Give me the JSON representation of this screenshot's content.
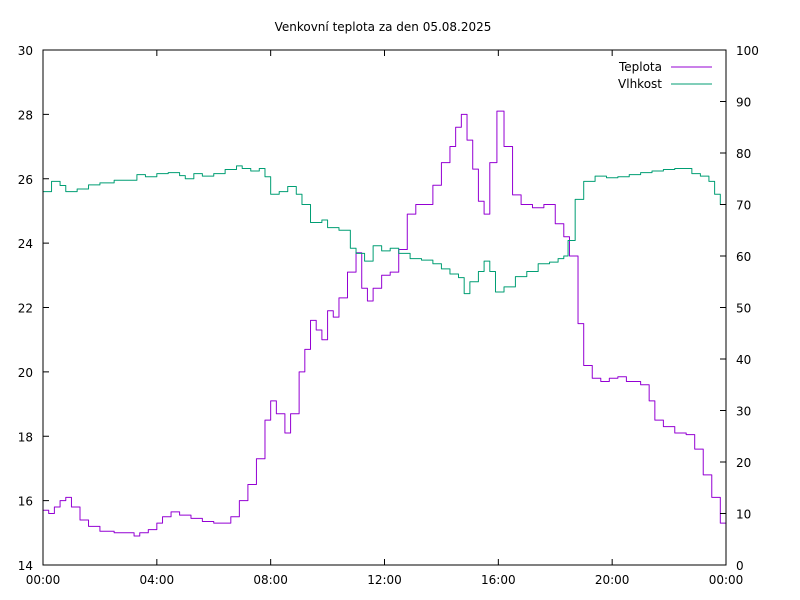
{
  "chart_data": {
    "type": "line",
    "title": "Venkovní teplota za den 05.08.2025",
    "x_unit": "hours",
    "xlim": [
      0,
      24
    ],
    "x_ticks": [
      {
        "value": 0,
        "label": "00:00"
      },
      {
        "value": 4,
        "label": "04:00"
      },
      {
        "value": 8,
        "label": "08:00"
      },
      {
        "value": 12,
        "label": "12:00"
      },
      {
        "value": 16,
        "label": "16:00"
      },
      {
        "value": 20,
        "label": "20:00"
      },
      {
        "value": 24,
        "label": "00:00"
      }
    ],
    "ylim": [
      14,
      30
    ],
    "y_ticks": [
      14,
      16,
      18,
      20,
      22,
      24,
      26,
      28,
      30
    ],
    "y2lim": [
      0,
      100
    ],
    "y2_ticks": [
      0,
      10,
      20,
      30,
      40,
      50,
      60,
      70,
      80,
      90,
      100
    ],
    "grid": false,
    "legend_position": "top-right",
    "series": [
      {
        "name": "Teplota",
        "axis": "left",
        "color": "#9400d3",
        "points": [
          [
            0.0,
            15.7
          ],
          [
            0.2,
            15.6
          ],
          [
            0.4,
            15.8
          ],
          [
            0.6,
            16.0
          ],
          [
            0.8,
            16.1
          ],
          [
            1.0,
            15.8
          ],
          [
            1.3,
            15.4
          ],
          [
            1.6,
            15.2
          ],
          [
            2.0,
            15.05
          ],
          [
            2.5,
            15.0
          ],
          [
            3.0,
            15.0
          ],
          [
            3.2,
            14.9
          ],
          [
            3.4,
            15.0
          ],
          [
            3.7,
            15.1
          ],
          [
            4.0,
            15.3
          ],
          [
            4.2,
            15.5
          ],
          [
            4.5,
            15.65
          ],
          [
            4.8,
            15.55
          ],
          [
            5.2,
            15.45
          ],
          [
            5.6,
            15.35
          ],
          [
            6.0,
            15.3
          ],
          [
            6.3,
            15.3
          ],
          [
            6.6,
            15.5
          ],
          [
            6.9,
            16.0
          ],
          [
            7.2,
            16.5
          ],
          [
            7.5,
            17.3
          ],
          [
            7.8,
            18.5
          ],
          [
            8.0,
            19.1
          ],
          [
            8.2,
            18.7
          ],
          [
            8.5,
            18.1
          ],
          [
            8.7,
            18.7
          ],
          [
            9.0,
            20.0
          ],
          [
            9.2,
            20.7
          ],
          [
            9.4,
            21.6
          ],
          [
            9.6,
            21.3
          ],
          [
            9.8,
            21.0
          ],
          [
            10.0,
            21.9
          ],
          [
            10.2,
            21.7
          ],
          [
            10.4,
            22.3
          ],
          [
            10.7,
            23.1
          ],
          [
            11.0,
            23.7
          ],
          [
            11.2,
            22.6
          ],
          [
            11.4,
            22.2
          ],
          [
            11.6,
            22.6
          ],
          [
            11.9,
            23.0
          ],
          [
            12.2,
            23.1
          ],
          [
            12.5,
            23.8
          ],
          [
            12.8,
            24.9
          ],
          [
            13.1,
            25.2
          ],
          [
            13.4,
            25.2
          ],
          [
            13.7,
            25.8
          ],
          [
            14.0,
            26.5
          ],
          [
            14.3,
            27.0
          ],
          [
            14.5,
            27.6
          ],
          [
            14.7,
            28.0
          ],
          [
            14.9,
            27.2
          ],
          [
            15.1,
            26.3
          ],
          [
            15.3,
            25.3
          ],
          [
            15.5,
            24.9
          ],
          [
            15.7,
            26.5
          ],
          [
            15.95,
            28.1
          ],
          [
            16.2,
            27.0
          ],
          [
            16.5,
            25.5
          ],
          [
            16.8,
            25.2
          ],
          [
            17.2,
            25.1
          ],
          [
            17.6,
            25.2
          ],
          [
            18.0,
            24.6
          ],
          [
            18.3,
            24.2
          ],
          [
            18.5,
            23.6
          ],
          [
            18.8,
            21.5
          ],
          [
            19.0,
            20.2
          ],
          [
            19.3,
            19.8
          ],
          [
            19.6,
            19.7
          ],
          [
            19.9,
            19.8
          ],
          [
            20.2,
            19.85
          ],
          [
            20.5,
            19.7
          ],
          [
            21.0,
            19.6
          ],
          [
            21.3,
            19.1
          ],
          [
            21.5,
            18.5
          ],
          [
            21.8,
            18.3
          ],
          [
            22.2,
            18.1
          ],
          [
            22.6,
            18.05
          ],
          [
            22.9,
            17.6
          ],
          [
            23.2,
            16.8
          ],
          [
            23.5,
            16.1
          ],
          [
            23.8,
            15.3
          ],
          [
            24.0,
            15.1
          ]
        ]
      },
      {
        "name": "Vlhkost",
        "axis": "right",
        "color": "#009e73",
        "points": [
          [
            0.0,
            72.5
          ],
          [
            0.3,
            74.5
          ],
          [
            0.6,
            73.7
          ],
          [
            0.8,
            72.5
          ],
          [
            1.2,
            73.0
          ],
          [
            1.6,
            73.8
          ],
          [
            2.0,
            74.2
          ],
          [
            2.5,
            74.7
          ],
          [
            3.0,
            74.7
          ],
          [
            3.3,
            75.8
          ],
          [
            3.6,
            75.4
          ],
          [
            4.0,
            76.0
          ],
          [
            4.4,
            76.2
          ],
          [
            4.8,
            75.6
          ],
          [
            5.0,
            75.0
          ],
          [
            5.3,
            76.0
          ],
          [
            5.6,
            75.5
          ],
          [
            6.0,
            76.0
          ],
          [
            6.4,
            76.8
          ],
          [
            6.8,
            77.5
          ],
          [
            7.0,
            77.0
          ],
          [
            7.3,
            76.5
          ],
          [
            7.6,
            77.0
          ],
          [
            7.8,
            75.4
          ],
          [
            8.0,
            72.0
          ],
          [
            8.3,
            72.5
          ],
          [
            8.6,
            73.5
          ],
          [
            8.9,
            72.0
          ],
          [
            9.1,
            70.0
          ],
          [
            9.4,
            66.5
          ],
          [
            9.8,
            67.0
          ],
          [
            10.0,
            65.5
          ],
          [
            10.4,
            65.0
          ],
          [
            10.8,
            61.5
          ],
          [
            11.0,
            60.5
          ],
          [
            11.3,
            59.0
          ],
          [
            11.6,
            62.0
          ],
          [
            11.9,
            61.0
          ],
          [
            12.2,
            61.5
          ],
          [
            12.5,
            60.5
          ],
          [
            12.9,
            59.5
          ],
          [
            13.3,
            59.2
          ],
          [
            13.7,
            58.5
          ],
          [
            14.0,
            57.5
          ],
          [
            14.3,
            56.5
          ],
          [
            14.6,
            55.8
          ],
          [
            14.8,
            52.7
          ],
          [
            15.0,
            55.0
          ],
          [
            15.3,
            57.0
          ],
          [
            15.5,
            59.0
          ],
          [
            15.7,
            57.0
          ],
          [
            15.9,
            53.0
          ],
          [
            16.2,
            54.0
          ],
          [
            16.6,
            56.0
          ],
          [
            17.0,
            57.0
          ],
          [
            17.4,
            58.5
          ],
          [
            17.8,
            58.8
          ],
          [
            18.1,
            59.5
          ],
          [
            18.3,
            60.0
          ],
          [
            18.45,
            63.0
          ],
          [
            18.7,
            71.0
          ],
          [
            19.0,
            74.5
          ],
          [
            19.4,
            75.5
          ],
          [
            19.8,
            75.2
          ],
          [
            20.2,
            75.4
          ],
          [
            20.6,
            75.8
          ],
          [
            21.0,
            76.2
          ],
          [
            21.4,
            76.5
          ],
          [
            21.8,
            76.8
          ],
          [
            22.2,
            77.0
          ],
          [
            22.5,
            77.0
          ],
          [
            22.8,
            76.0
          ],
          [
            23.1,
            75.5
          ],
          [
            23.4,
            74.5
          ],
          [
            23.6,
            72.0
          ],
          [
            23.8,
            70.0
          ],
          [
            24.0,
            70.0
          ]
        ]
      }
    ]
  }
}
